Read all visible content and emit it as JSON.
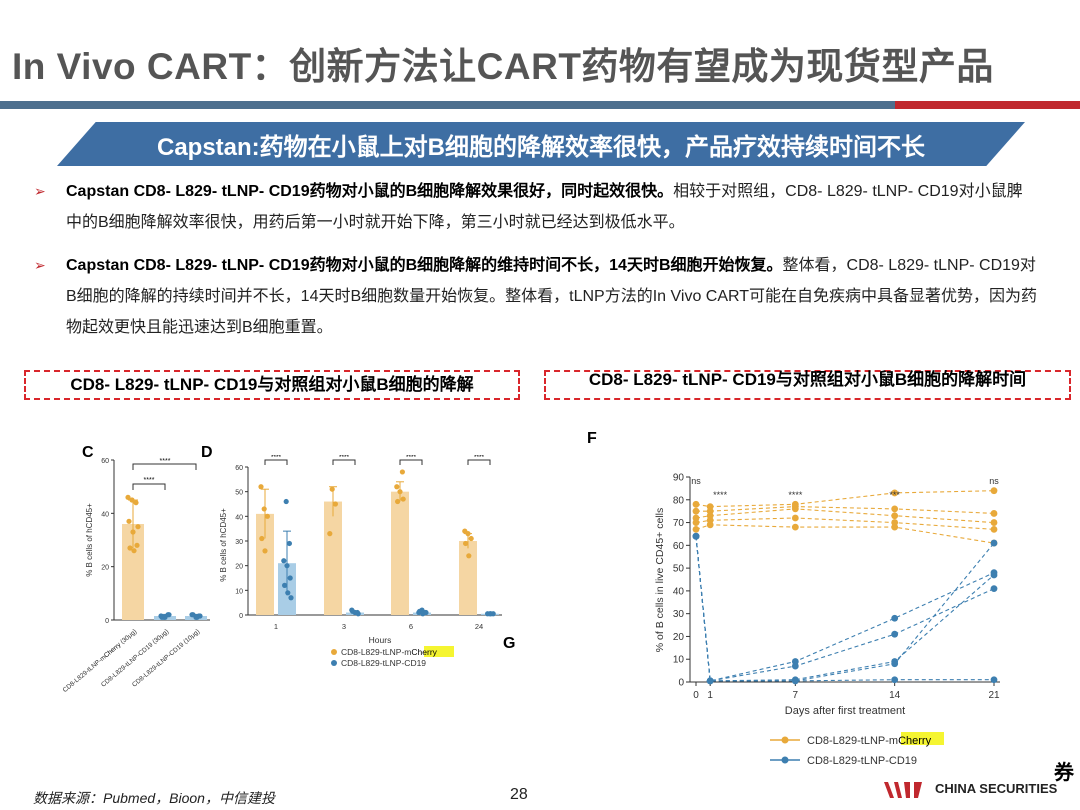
{
  "title": "In Vivo CART：创新方法让CART药物有望成为现货型产品",
  "banner": "Capstan:药物在小鼠上对B细胞的降解效率很快，产品疗效持续时间不长",
  "bullets": [
    {
      "bold": "Capstan  CD8- L829- tLNP- CD19药物对小鼠的B细胞降解效果很好，同时起效很快。",
      "rest": "相较于对照组，CD8- L829- tLNP- CD19对小鼠脾中的B细胞降解效率很快，用药后第一小时就开始下降，第三小时就已经达到极低水平。"
    },
    {
      "bold": "Capstan  CD8- L829- tLNP- CD19药物对小鼠的B细胞降解的维持时间不长，14天时B细胞开始恢复。",
      "rest": "整体看，CD8- L829- tLNP- CD19对B细胞的降解的持续时间并不长，14天时B细胞数量开始恢复。整体看，tLNP方法的In Vivo CART可能在自免疾病中具备显著优势，因为药物起效更快且能迅速达到B细胞重置。"
    }
  ],
  "box_left": "CD8- L829- tLNP- CD19与对照组对小鼠B细胞的降解",
  "box_right": "CD8- L829- tLNP- CD19与对照组对小鼠B细胞的降解时间",
  "colors": {
    "orange": "#e8a93a",
    "orange_fill": "#f5d6a3",
    "blue": "#3d7fb0",
    "blue_fill": "#a9cde6",
    "highlight": "#f5f531"
  },
  "chart_data": [
    {
      "panel": "C",
      "type": "bar",
      "ylabel": "% B cells of hCD45+",
      "ylim": [
        0,
        60
      ],
      "yticks": [
        "0",
        "20",
        "40",
        "60"
      ],
      "categories": [
        {
          "pre": "CD8-L829-tLNP-m",
          "hl": "Cherry",
          "post": " (30μg)"
        },
        {
          "pre": "CD8-L829-tLNP-CD19 (30μg)",
          "hl": "",
          "post": ""
        },
        {
          "pre": "CD8-L829-tLNP-CD19 (10μg)",
          "hl": "",
          "post": ""
        }
      ],
      "values": [
        36,
        1.5,
        1.5
      ],
      "errors": [
        9,
        0.6,
        0.6
      ],
      "points": [
        [
          46,
          45,
          44,
          37,
          33,
          28,
          27,
          26,
          35
        ],
        [
          1,
          2,
          1.5,
          1,
          2,
          1
        ],
        [
          1.5,
          2,
          1,
          1.5,
          2,
          1
        ]
      ],
      "sig": [
        "****",
        "****"
      ]
    },
    {
      "panel": "D",
      "type": "bar",
      "ylabel": "% B cells of hCD45+",
      "xlabel": "Hours",
      "ylim": [
        0,
        60
      ],
      "yticks": [
        "0",
        "10",
        "20",
        "30",
        "40",
        "50",
        "60"
      ],
      "categories": [
        "1",
        "3",
        "6",
        "24"
      ],
      "series": [
        {
          "pre": "CD8-L829-tLNP-m",
          "hl": "Cherry",
          "values": [
            41,
            46,
            50,
            30
          ],
          "errors": [
            10,
            6,
            4,
            3
          ],
          "points": [
            [
              52,
              43,
              40,
              31,
              26
            ],
            [
              51,
              45,
              33
            ],
            [
              58,
              52,
              50,
              47,
              46
            ],
            [
              34,
              33,
              31,
              29,
              24
            ]
          ]
        },
        {
          "pre": "CD8-L829-tLNP-CD19",
          "hl": "",
          "values": [
            21,
            1,
            1,
            0.5
          ],
          "errors": [
            13,
            0.5,
            0.5,
            0.3
          ],
          "points": [
            [
              46,
              29,
              22,
              20,
              15,
              12,
              9,
              7
            ],
            [
              1,
              2,
              1,
              0.5,
              1.5
            ],
            [
              1,
              2,
              1,
              1.5,
              0.5,
              1
            ],
            [
              0.5,
              0.5,
              0.5,
              0.5
            ]
          ]
        }
      ],
      "sig": [
        "****",
        "****",
        "****",
        "****"
      ]
    },
    {
      "panel": "F",
      "type": "line",
      "ylabel": "% of B cells in live CD45+ cells",
      "xlabel": "Days after first treatment",
      "ylim": [
        0,
        90
      ],
      "yticks": [
        "0",
        "10",
        "20",
        "30",
        "40",
        "50",
        "60",
        "70",
        "80",
        "90"
      ],
      "xticks": [
        0,
        1,
        7,
        14,
        21
      ],
      "xlim": [
        0,
        21
      ],
      "series": [
        {
          "pre": "CD8-L829-tLNP-m",
          "hl": "Cherry",
          "lines": [
            [
              [
                0,
                78
              ],
              [
                1,
                77
              ],
              [
                7,
                78
              ],
              [
                14,
                83
              ],
              [
                21,
                84
              ]
            ],
            [
              [
                0,
                75
              ],
              [
                1,
                75
              ],
              [
                7,
                77
              ],
              [
                14,
                76
              ],
              [
                21,
                74
              ]
            ],
            [
              [
                0,
                72
              ],
              [
                1,
                73
              ],
              [
                7,
                76
              ],
              [
                14,
                73
              ],
              [
                21,
                70
              ]
            ],
            [
              [
                0,
                70
              ],
              [
                1,
                71
              ],
              [
                7,
                72
              ],
              [
                14,
                70
              ],
              [
                21,
                67
              ]
            ],
            [
              [
                0,
                67
              ],
              [
                1,
                69
              ],
              [
                7,
                68
              ],
              [
                14,
                68
              ],
              [
                21,
                61
              ]
            ]
          ]
        },
        {
          "pre": "CD8-L829-tLNP-CD19",
          "hl": "",
          "lines": [
            [
              [
                0,
                64
              ],
              [
                1,
                0.5
              ],
              [
                7,
                9
              ],
              [
                14,
                28
              ],
              [
                21,
                48
              ]
            ],
            [
              [
                0,
                64
              ],
              [
                1,
                0.5
              ],
              [
                7,
                7
              ],
              [
                14,
                21
              ],
              [
                21,
                41
              ]
            ],
            [
              [
                0,
                64
              ],
              [
                1,
                0.5
              ],
              [
                7,
                1
              ],
              [
                14,
                9
              ],
              [
                21,
                47
              ]
            ],
            [
              [
                0,
                64
              ],
              [
                1,
                0.5
              ],
              [
                7,
                0.5
              ],
              [
                14,
                8
              ],
              [
                21,
                61
              ]
            ],
            [
              [
                0,
                64
              ],
              [
                1,
                0.5
              ],
              [
                7,
                0.5
              ],
              [
                14,
                1
              ],
              [
                21,
                1
              ]
            ]
          ]
        }
      ],
      "sig": [
        {
          "x": 0,
          "label": "ns"
        },
        {
          "x": 1,
          "label": "****"
        },
        {
          "x": 7,
          "label": "****"
        },
        {
          "x": 14,
          "label": "***"
        },
        {
          "x": 21,
          "label": "ns"
        }
      ]
    }
  ],
  "panel_letters": {
    "c": "C",
    "d": "D",
    "f": "F",
    "g": "G"
  },
  "footer": {
    "source": "数据来源：Pubmed，Bioon，中信建投",
    "page": "28",
    "brand_cn": "券",
    "brand_en": "CHINA SECURITIES"
  }
}
